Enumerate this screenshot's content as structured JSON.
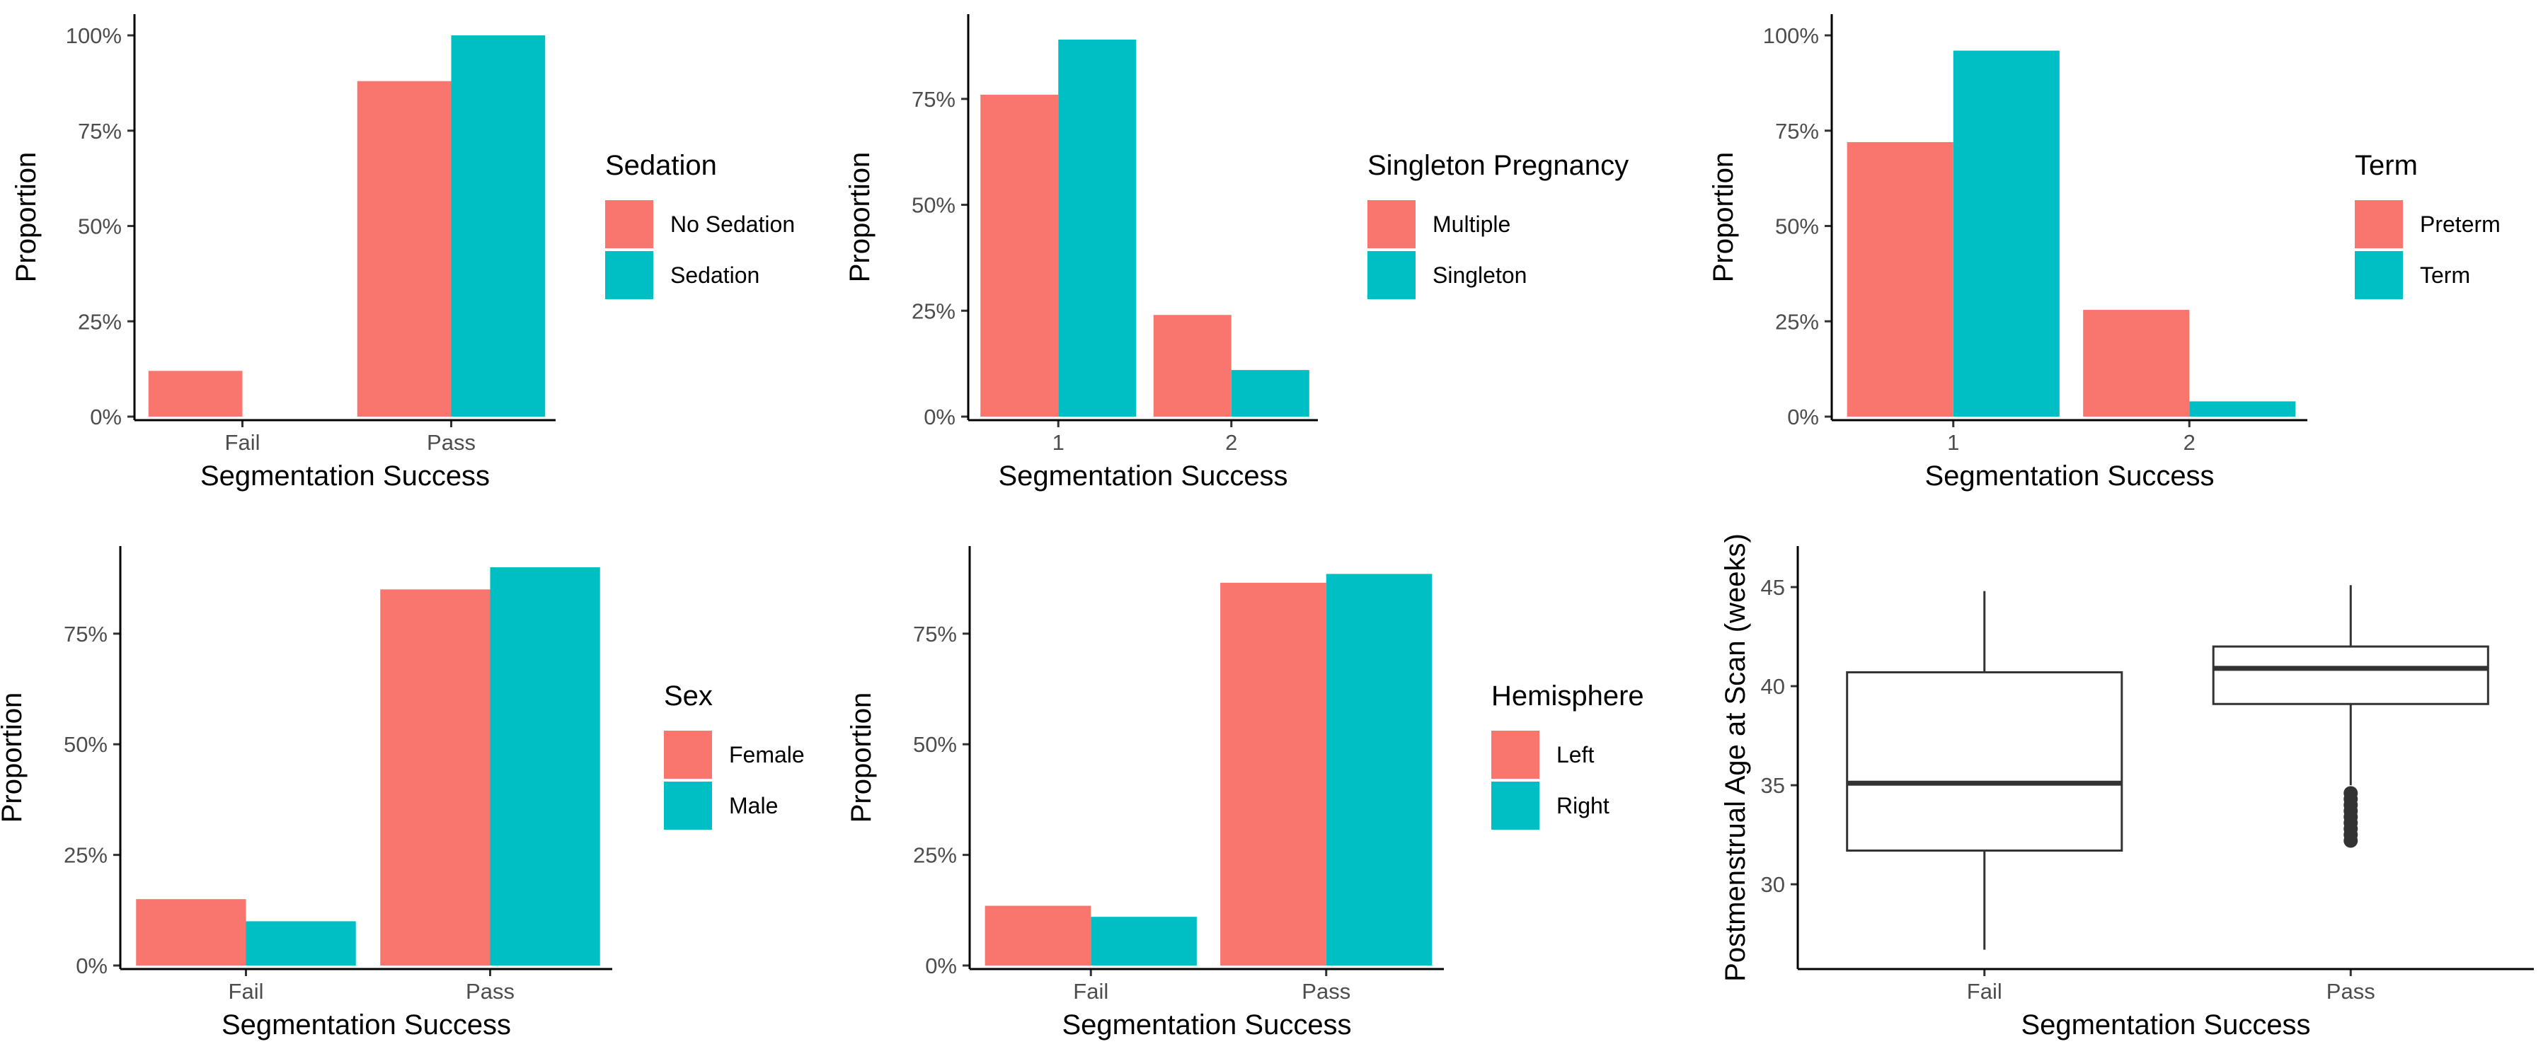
{
  "colors": {
    "series_a": "#F8766D",
    "series_b": "#00BFC4",
    "axis": "#000000",
    "tick_text": "#4d4d4d"
  },
  "chart_data": [
    {
      "type": "bar",
      "xlabel": "Segmentation Success",
      "ylabel": "Proportion",
      "categories": [
        "Fail",
        "Pass"
      ],
      "yticks": [
        "0%",
        "25%",
        "50%",
        "75%",
        "100%"
      ],
      "ylim": [
        0,
        1
      ],
      "legend": {
        "title": "Sedation",
        "position": "right"
      },
      "series": [
        {
          "name": "No Sedation",
          "values": [
            0.12,
            0.88
          ]
        },
        {
          "name": "Sedation",
          "values": [
            0.0,
            1.0
          ]
        }
      ]
    },
    {
      "type": "bar",
      "xlabel": "Segmentation Success",
      "ylabel": "Proportion",
      "categories": [
        "1",
        "2"
      ],
      "yticks": [
        "0%",
        "25%",
        "50%",
        "75%"
      ],
      "ylim": [
        0,
        0.9
      ],
      "legend": {
        "title": "Singleton Pregnancy",
        "position": "right"
      },
      "series": [
        {
          "name": "Multiple",
          "values": [
            0.76,
            0.24
          ]
        },
        {
          "name": "Singleton",
          "values": [
            0.89,
            0.11
          ]
        }
      ]
    },
    {
      "type": "bar",
      "xlabel": "Segmentation Success",
      "ylabel": "Proportion",
      "categories": [
        "1",
        "2"
      ],
      "yticks": [
        "0%",
        "25%",
        "50%",
        "75%",
        "100%"
      ],
      "ylim": [
        0,
        1
      ],
      "legend": {
        "title": "Term",
        "position": "right"
      },
      "series": [
        {
          "name": "Preterm",
          "values": [
            0.72,
            0.28
          ]
        },
        {
          "name": "Term",
          "values": [
            0.96,
            0.04
          ]
        }
      ]
    },
    {
      "type": "bar",
      "xlabel": "Segmentation Success",
      "ylabel": "Proportion",
      "categories": [
        "Fail",
        "Pass"
      ],
      "yticks": [
        "0%",
        "25%",
        "50%",
        "75%"
      ],
      "ylim": [
        0,
        0.9
      ],
      "legend": {
        "title": "Sex",
        "position": "right"
      },
      "series": [
        {
          "name": "Female",
          "values": [
            0.15,
            0.85
          ]
        },
        {
          "name": "Male",
          "values": [
            0.1,
            0.9
          ]
        }
      ]
    },
    {
      "type": "bar",
      "xlabel": "Segmentation Success",
      "ylabel": "Proportion",
      "categories": [
        "Fail",
        "Pass"
      ],
      "yticks": [
        "0%",
        "25%",
        "50%",
        "75%"
      ],
      "ylim": [
        0,
        0.9
      ],
      "legend": {
        "title": "Hemisphere",
        "position": "right"
      },
      "series": [
        {
          "name": "Left",
          "values": [
            0.135,
            0.865
          ]
        },
        {
          "name": "Right",
          "values": [
            0.11,
            0.885
          ]
        }
      ]
    },
    {
      "type": "box",
      "xlabel": "Segmentation Success",
      "ylabel": "Postmenstrual Age at Scan (weeks)",
      "categories": [
        "Fail",
        "Pass"
      ],
      "yticks": [
        "30",
        "35",
        "40",
        "45"
      ],
      "ylim": [
        25.9,
        46
      ],
      "boxes": [
        {
          "category": "Fail",
          "min": 26.7,
          "q1": 31.7,
          "median": 35.1,
          "q3": 40.7,
          "max": 44.8,
          "outliers": []
        },
        {
          "category": "Pass",
          "min": 35.0,
          "q1": 39.1,
          "median": 40.9,
          "q3": 42.0,
          "max": 45.1,
          "outliers": [
            32.2,
            32.5,
            32.8,
            33.1,
            33.4,
            33.7,
            34.0,
            34.3,
            34.6
          ]
        }
      ]
    }
  ]
}
